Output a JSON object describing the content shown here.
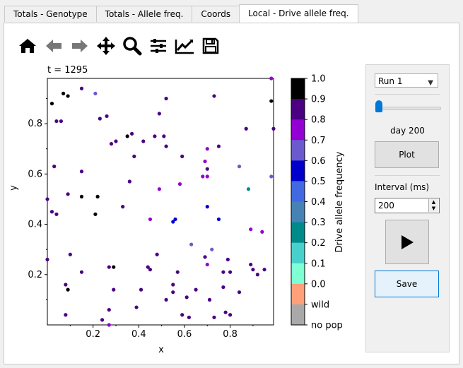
{
  "tabs": [
    {
      "label": "Totals - Genotype",
      "active": false
    },
    {
      "label": "Totals - Allele freq.",
      "active": false
    },
    {
      "label": "Coords",
      "active": false
    },
    {
      "label": "Local - Drive allele freq.",
      "active": true
    }
  ],
  "toolbar": {
    "icons": [
      "home-icon",
      "back-arrow-icon",
      "forward-arrow-icon",
      "pan-icon",
      "zoom-icon",
      "subplots-icon",
      "edit-axis-icon",
      "save-figure-icon"
    ]
  },
  "plot": {
    "time_label": "t = 1295",
    "colorbar_label": "Drive allele frequency"
  },
  "controls": {
    "run_select": "Run 1",
    "slider_label": "day 200",
    "slider_value_fraction": 0.0,
    "plot_button": "Plot",
    "interval_label": "Interval (ms)",
    "interval_value": "200",
    "save_button": "Save"
  },
  "chart_data": {
    "type": "scatter",
    "title": "t = 1295",
    "xlabel": "x",
    "ylabel": "y",
    "xlim": [
      0.0,
      0.99
    ],
    "ylim": [
      0.0,
      0.98
    ],
    "xticks": [
      "0.2",
      "0.4",
      "0.6",
      "0.8"
    ],
    "yticks": [
      "0.2",
      "0.4",
      "0.6",
      "0.8"
    ],
    "grid": false,
    "colorbar": {
      "label": "Drive allele frequency",
      "ticks": [
        "1.0",
        "0.9",
        "0.8",
        "0.7",
        "0.6",
        "0.5",
        "0.4",
        "0.3",
        "0.2",
        "0.1",
        "0.0",
        "wild",
        "no pop"
      ],
      "colors": [
        "#000000",
        "#4b0082",
        "#9400d3",
        "#6a5acd",
        "#0000cd",
        "#4169e1",
        "#4682b4",
        "#008b8b",
        "#48d1cc",
        "#7fffd4",
        "#ffa07a",
        "#a9a9a9"
      ]
    },
    "points": [
      {
        "x": 0.02,
        "y": 0.88,
        "c": "#000000"
      },
      {
        "x": 0.07,
        "y": 0.92,
        "c": "#000000"
      },
      {
        "x": 0.09,
        "y": 0.91,
        "c": "#000000"
      },
      {
        "x": 0.15,
        "y": 0.94,
        "c": "#4b0082"
      },
      {
        "x": 0.21,
        "y": 0.92,
        "c": "#6a5acd"
      },
      {
        "x": 0.98,
        "y": 0.98,
        "c": "#9400d3"
      },
      {
        "x": 0.04,
        "y": 0.81,
        "c": "#4b0082"
      },
      {
        "x": 0.06,
        "y": 0.81,
        "c": "#4b0082"
      },
      {
        "x": 0.23,
        "y": 0.82,
        "c": "#4b0082"
      },
      {
        "x": 0.26,
        "y": 0.83,
        "c": "#4b0082"
      },
      {
        "x": 0.52,
        "y": 0.9,
        "c": "#4b0082"
      },
      {
        "x": 0.73,
        "y": 0.91,
        "c": "#4b0082"
      },
      {
        "x": 0.49,
        "y": 0.84,
        "c": "#4b0082"
      },
      {
        "x": 0.98,
        "y": 0.89,
        "c": "#000000"
      },
      {
        "x": 0.99,
        "y": 0.78,
        "c": "#4b0082"
      },
      {
        "x": 0.87,
        "y": 0.78,
        "c": "#4b0082"
      },
      {
        "x": 0.35,
        "y": 0.75,
        "c": "#000000"
      },
      {
        "x": 0.37,
        "y": 0.76,
        "c": "#4b0082"
      },
      {
        "x": 0.28,
        "y": 0.72,
        "c": "#4b0082"
      },
      {
        "x": 0.3,
        "y": 0.73,
        "c": "#4b0082"
      },
      {
        "x": 0.42,
        "y": 0.73,
        "c": "#4b0082"
      },
      {
        "x": 0.47,
        "y": 0.75,
        "c": "#4b0082"
      },
      {
        "x": 0.51,
        "y": 0.75,
        "c": "#4b0082"
      },
      {
        "x": 0.52,
        "y": 0.71,
        "c": "#4b0082"
      },
      {
        "x": 0.7,
        "y": 0.7,
        "c": "#9400d3"
      },
      {
        "x": 0.75,
        "y": 0.71,
        "c": "#4b0082"
      },
      {
        "x": 0.38,
        "y": 0.67,
        "c": "#4b0082"
      },
      {
        "x": 0.59,
        "y": 0.67,
        "c": "#4b0082"
      },
      {
        "x": 0.69,
        "y": 0.65,
        "c": "#9400d3"
      },
      {
        "x": 0.03,
        "y": 0.63,
        "c": "#4b0082"
      },
      {
        "x": 0.15,
        "y": 0.61,
        "c": "#4b0082"
      },
      {
        "x": 0.7,
        "y": 0.62,
        "c": "#4b0082"
      },
      {
        "x": 0.84,
        "y": 0.63,
        "c": "#6a5acd"
      },
      {
        "x": 0.68,
        "y": 0.59,
        "c": "#9400d3"
      },
      {
        "x": 0.7,
        "y": 0.59,
        "c": "#9400d3"
      },
      {
        "x": 0.98,
        "y": 0.59,
        "c": "#6a5acd"
      },
      {
        "x": 0.36,
        "y": 0.57,
        "c": "#4b0082"
      },
      {
        "x": 0.49,
        "y": 0.54,
        "c": "#9400d3"
      },
      {
        "x": 0.58,
        "y": 0.56,
        "c": "#9400d3"
      },
      {
        "x": 0.88,
        "y": 0.54,
        "c": "#008b8b"
      },
      {
        "x": 0.0,
        "y": 0.5,
        "c": "#4b0082"
      },
      {
        "x": 0.09,
        "y": 0.52,
        "c": "#4b0082"
      },
      {
        "x": 0.15,
        "y": 0.51,
        "c": "#000000"
      },
      {
        "x": 0.22,
        "y": 0.51,
        "c": "#000000"
      },
      {
        "x": 0.33,
        "y": 0.47,
        "c": "#4b0082"
      },
      {
        "x": 0.7,
        "y": 0.47,
        "c": "#0000cd"
      },
      {
        "x": 0.02,
        "y": 0.45,
        "c": "#4b0082"
      },
      {
        "x": 0.04,
        "y": 0.44,
        "c": "#4b0082"
      },
      {
        "x": 0.21,
        "y": 0.44,
        "c": "#000000"
      },
      {
        "x": 0.45,
        "y": 0.42,
        "c": "#9400d3"
      },
      {
        "x": 0.55,
        "y": 0.41,
        "c": "#0000cd"
      },
      {
        "x": 0.56,
        "y": 0.42,
        "c": "#0000cd"
      },
      {
        "x": 0.75,
        "y": 0.42,
        "c": "#0000cd"
      },
      {
        "x": 0.89,
        "y": 0.38,
        "c": "#9400d3"
      },
      {
        "x": 0.94,
        "y": 0.37,
        "c": "#9400d3"
      },
      {
        "x": 0.63,
        "y": 0.32,
        "c": "#6a5acd"
      },
      {
        "x": 0.72,
        "y": 0.3,
        "c": "#6a5acd"
      },
      {
        "x": 0.1,
        "y": 0.28,
        "c": "#4b0082"
      },
      {
        "x": 0.48,
        "y": 0.28,
        "c": "#4b0082"
      },
      {
        "x": 0.69,
        "y": 0.27,
        "c": "#4b0082"
      },
      {
        "x": 0.79,
        "y": 0.26,
        "c": "#4b0082"
      },
      {
        "x": 0.0,
        "y": 0.26,
        "c": "#4b0082"
      },
      {
        "x": 0.27,
        "y": 0.23,
        "c": "#4b0082"
      },
      {
        "x": 0.29,
        "y": 0.23,
        "c": "#000000"
      },
      {
        "x": 0.44,
        "y": 0.23,
        "c": "#4b0082"
      },
      {
        "x": 0.45,
        "y": 0.22,
        "c": "#4b0082"
      },
      {
        "x": 0.7,
        "y": 0.24,
        "c": "#9400d3"
      },
      {
        "x": 0.89,
        "y": 0.24,
        "c": "#4b0082"
      },
      {
        "x": 0.9,
        "y": 0.22,
        "c": "#4b0082"
      },
      {
        "x": 0.95,
        "y": 0.22,
        "c": "#4b0082"
      },
      {
        "x": 0.15,
        "y": 0.21,
        "c": "#4b0082"
      },
      {
        "x": 0.57,
        "y": 0.21,
        "c": "#4b0082"
      },
      {
        "x": 0.77,
        "y": 0.21,
        "c": "#4b0082"
      },
      {
        "x": 0.8,
        "y": 0.21,
        "c": "#4b0082"
      },
      {
        "x": 0.92,
        "y": 0.2,
        "c": "#4b0082"
      },
      {
        "x": 0.08,
        "y": 0.16,
        "c": "#4b0082"
      },
      {
        "x": 0.09,
        "y": 0.14,
        "c": "#000000"
      },
      {
        "x": 0.55,
        "y": 0.16,
        "c": "#4b0082"
      },
      {
        "x": 0.29,
        "y": 0.14,
        "c": "#4b0082"
      },
      {
        "x": 0.41,
        "y": 0.14,
        "c": "#4b0082"
      },
      {
        "x": 0.55,
        "y": 0.13,
        "c": "#4b0082"
      },
      {
        "x": 0.65,
        "y": 0.14,
        "c": "#4b0082"
      },
      {
        "x": 0.77,
        "y": 0.15,
        "c": "#4b0082"
      },
      {
        "x": 0.84,
        "y": 0.13,
        "c": "#4b0082"
      },
      {
        "x": 0.52,
        "y": 0.1,
        "c": "#4b0082"
      },
      {
        "x": 0.61,
        "y": 0.11,
        "c": "#4b0082"
      },
      {
        "x": 0.71,
        "y": 0.1,
        "c": "#4b0082"
      },
      {
        "x": 0.39,
        "y": 0.07,
        "c": "#4b0082"
      },
      {
        "x": 0.27,
        "y": 0.06,
        "c": "#4b0082"
      },
      {
        "x": 0.08,
        "y": 0.04,
        "c": "#4b0082"
      },
      {
        "x": 0.24,
        "y": 0.02,
        "c": "#4b0082"
      },
      {
        "x": 0.27,
        "y": 0.0,
        "c": "#9400d3"
      },
      {
        "x": 0.59,
        "y": 0.04,
        "c": "#4b0082"
      },
      {
        "x": 0.62,
        "y": 0.03,
        "c": "#4b0082"
      },
      {
        "x": 0.73,
        "y": 0.03,
        "c": "#4b0082"
      },
      {
        "x": 0.78,
        "y": 0.05,
        "c": "#4b0082"
      },
      {
        "x": 0.8,
        "y": 0.04,
        "c": "#4b0082"
      }
    ]
  }
}
